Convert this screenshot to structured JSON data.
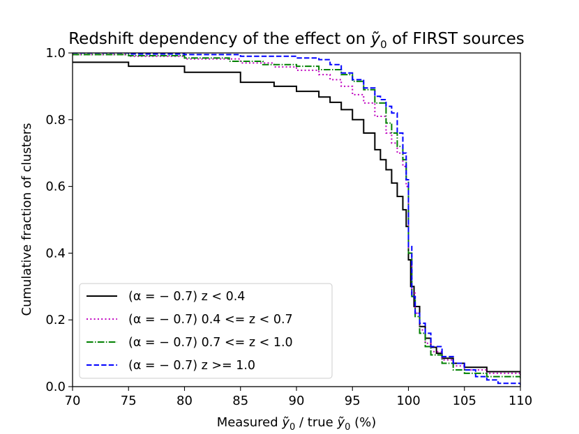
{
  "chart_data": {
    "type": "line",
    "title": "Redshift dependency of the effect on ỹ₀ of FIRST sources",
    "title_parts": {
      "pre": "Redshift dependency of the effect on ",
      "sym": "ỹ",
      "sub": "0",
      "post": " of FIRST sources"
    },
    "xlabel": "Measured ỹ₀ / true ỹ₀ (%)",
    "xlabel_parts": {
      "pre": "Measured ",
      "sym1": "ỹ",
      "sub1": "0",
      "mid": " / true ",
      "sym2": "ỹ",
      "sub2": "0",
      "post": " (%)"
    },
    "ylabel": "Cumulative fraction of clusters",
    "xlim": [
      70,
      110
    ],
    "ylim": [
      0.0,
      1.0
    ],
    "xticks": [
      70,
      75,
      80,
      85,
      90,
      95,
      100,
      105,
      110
    ],
    "xtick_labels": [
      "70",
      "75",
      "80",
      "85",
      "90",
      "95",
      "100",
      "105",
      "110"
    ],
    "yticks": [
      0.0,
      0.2,
      0.4,
      0.6,
      0.8,
      1.0
    ],
    "ytick_labels": [
      "0.0",
      "0.2",
      "0.4",
      "0.6",
      "0.8",
      "1.0"
    ],
    "grid": false,
    "legend_position": "lower-left",
    "series": [
      {
        "name": "(α = − 0.7) z < 0.4",
        "color": "#000000",
        "dash": "solid",
        "x": [
          70,
          75,
          80,
          85,
          88,
          90,
          92,
          93,
          94,
          95,
          96,
          97,
          97.5,
          98,
          98.5,
          99,
          99.5,
          99.8,
          100,
          100.2,
          100.5,
          101,
          101.5,
          102,
          102.5,
          103,
          104,
          105,
          107,
          110
        ],
        "y": [
          0.972,
          0.96,
          0.942,
          0.912,
          0.9,
          0.885,
          0.868,
          0.852,
          0.83,
          0.8,
          0.76,
          0.71,
          0.68,
          0.65,
          0.61,
          0.57,
          0.53,
          0.48,
          0.38,
          0.3,
          0.24,
          0.18,
          0.145,
          0.118,
          0.1,
          0.085,
          0.07,
          0.058,
          0.045,
          0.035
        ]
      },
      {
        "name": "(α = − 0.7) 0.4 <= z < 0.7",
        "color": "#bf00bf",
        "dash": "dotted",
        "x": [
          70,
          75,
          80,
          85,
          88,
          90,
          92,
          93,
          94,
          95,
          96,
          97,
          98,
          98.5,
          99,
          99.5,
          99.8,
          100,
          100.3,
          100.6,
          101,
          101.5,
          102,
          103,
          104,
          105,
          107,
          110
        ],
        "y": [
          0.995,
          0.99,
          0.982,
          0.97,
          0.958,
          0.948,
          0.935,
          0.92,
          0.9,
          0.875,
          0.85,
          0.81,
          0.76,
          0.73,
          0.7,
          0.66,
          0.6,
          0.4,
          0.28,
          0.22,
          0.17,
          0.13,
          0.105,
          0.08,
          0.062,
          0.05,
          0.04,
          0.03
        ]
      },
      {
        "name": "(α = − 0.7) 0.7 <= z < 1.0",
        "color": "#008000",
        "dash": "dashdot",
        "x": [
          70,
          75,
          80,
          84,
          87,
          90,
          92,
          94,
          95,
          96,
          97,
          98,
          98.5,
          99,
          99.5,
          99.8,
          100,
          100.3,
          100.6,
          101,
          101.5,
          102,
          103,
          104,
          105,
          107,
          110
        ],
        "y": [
          0.995,
          0.992,
          0.985,
          0.975,
          0.965,
          0.96,
          0.95,
          0.935,
          0.915,
          0.89,
          0.85,
          0.79,
          0.76,
          0.72,
          0.68,
          0.62,
          0.4,
          0.27,
          0.21,
          0.16,
          0.12,
          0.095,
          0.07,
          0.05,
          0.04,
          0.03,
          0.02
        ]
      },
      {
        "name": "(α = − 0.7) z >= 1.0",
        "color": "#0000ff",
        "dash": "dashed",
        "x": [
          70,
          75,
          80,
          85,
          90,
          92,
          93,
          94,
          95,
          96,
          97,
          97.5,
          98,
          98.5,
          99,
          99.5,
          99.8,
          100,
          100.3,
          100.6,
          101,
          101.5,
          102,
          103,
          104,
          105,
          106,
          107,
          108,
          110
        ],
        "y": [
          1.0,
          0.997,
          0.995,
          0.99,
          0.985,
          0.98,
          0.965,
          0.94,
          0.92,
          0.895,
          0.87,
          0.86,
          0.84,
          0.82,
          0.76,
          0.7,
          0.62,
          0.42,
          0.27,
          0.22,
          0.19,
          0.16,
          0.12,
          0.09,
          0.07,
          0.05,
          0.03,
          0.02,
          0.01,
          0.005
        ]
      }
    ]
  }
}
